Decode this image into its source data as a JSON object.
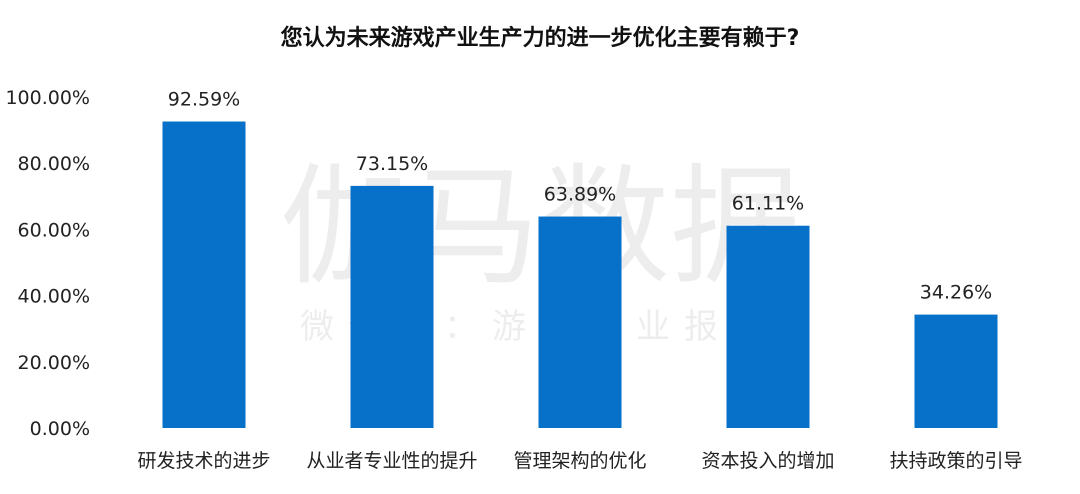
{
  "watermark": {
    "main": "伽马数据",
    "sub": "微信号：游戏产业报告"
  },
  "chart_data": {
    "type": "bar",
    "title": "您认为未来游戏产业生产力的进一步优化主要有赖于?",
    "xlabel": "",
    "ylabel": "",
    "categories": [
      "研发技术的进步",
      "从业者专业性的提升",
      "管理架构的优化",
      "资本投入的增加",
      "扶持政策的引导"
    ],
    "values": [
      92.59,
      73.15,
      63.89,
      61.11,
      34.26
    ],
    "value_labels": [
      "92.59%",
      "73.15%",
      "63.89%",
      "61.11%",
      "34.26%"
    ],
    "y_ticks": [
      0,
      20,
      40,
      60,
      80,
      100
    ],
    "y_tick_labels": [
      "0.00%",
      "20.00%",
      "40.00%",
      "60.00%",
      "80.00%",
      "100.00%"
    ],
    "ylim": [
      0,
      100
    ],
    "bar_color": "#0770c8",
    "grid": false,
    "legend": "none"
  }
}
